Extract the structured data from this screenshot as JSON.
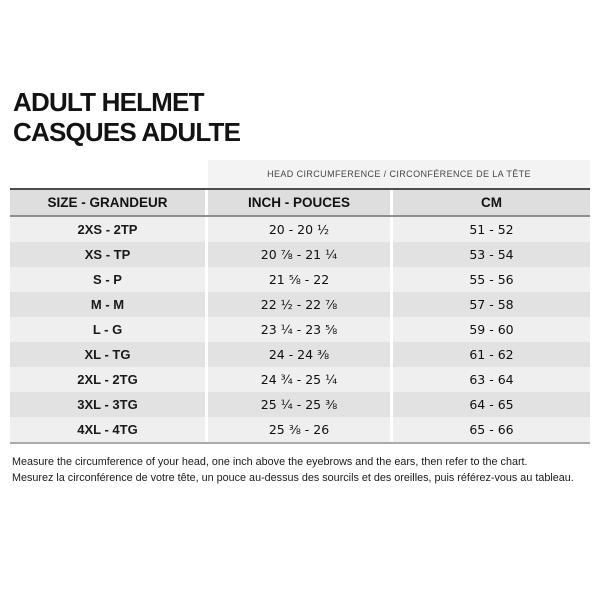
{
  "title": {
    "line1": "ADULT HELMET",
    "line2": "CASQUES ADULTE"
  },
  "table": {
    "span_header": "HEAD CIRCUMFERENCE / CIRCONFÉRENCE DE LA TÊTE",
    "columns": {
      "size": "SIZE - GRANDEUR",
      "inch": "INCH - POUCES",
      "cm": "CM"
    },
    "rows": [
      {
        "size": "2XS - 2TP",
        "inch": "20 - 20 ½",
        "cm": "51 - 52"
      },
      {
        "size": "XS - TP",
        "inch": "20 ⅞ - 21 ¼",
        "cm": "53 - 54"
      },
      {
        "size": "S - P",
        "inch": "21 ⅝ - 22",
        "cm": "55 - 56"
      },
      {
        "size": "M - M",
        "inch": "22 ½ - 22 ⅞",
        "cm": "57 - 58"
      },
      {
        "size": "L - G",
        "inch": "23 ¼ - 23 ⅝",
        "cm": "59 - 60"
      },
      {
        "size": "XL - TG",
        "inch": "24 - 24 ⅜",
        "cm": "61 - 62"
      },
      {
        "size": "2XL - 2TG",
        "inch": "24 ¾ - 25 ¼",
        "cm": "63 - 64"
      },
      {
        "size": "3XL - 3TG",
        "inch": "25 ¼ - 25 ⅜",
        "cm": "64 - 65"
      },
      {
        "size": "4XL - 4TG",
        "inch": "25 ⅜ - 26",
        "cm": "65 - 66"
      }
    ]
  },
  "footer": {
    "line1": "Measure the circumference of your head, one inch above the eyebrows and the ears, then refer to the chart.",
    "line2": "Mesurez la circonférence de votre tête, un pouce au-dessus des sourcils et des oreilles, puis référez-vous au tableau."
  },
  "colors": {
    "band_bg": "#f3f3f3",
    "header_bg": "#dedede",
    "row_light": "#efefef",
    "row_dark": "#e2e2e2",
    "border_dark": "#4d4d4d",
    "border_bottom": "#ababab",
    "text": "#131313"
  }
}
